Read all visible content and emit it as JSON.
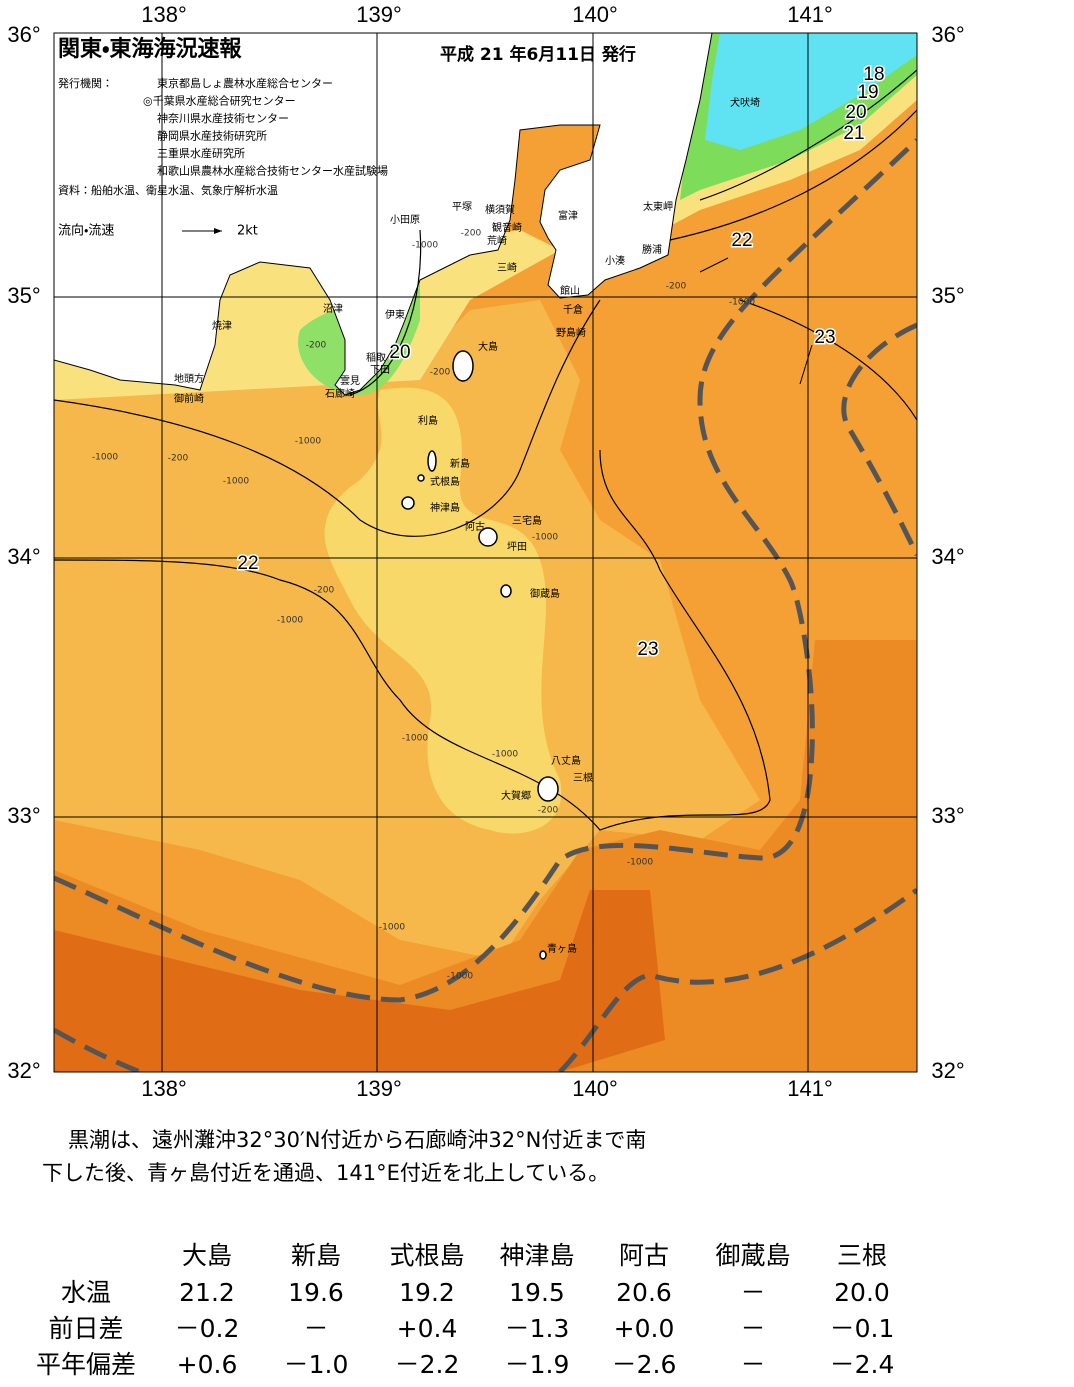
{
  "map": {
    "title": "関東・東海海況速報",
    "issue_date": "平成 21 年6月11日 発行",
    "publishers_label": "発行機関：",
    "publishers": [
      "東京都島しょ農林水産総合センター",
      "◎千葉県水産総合研究センター",
      "神奈川県水産技術センター",
      "静岡県水産技術研究所",
      "三重県水産研究所",
      "和歌山県農林水産総合技術センター水産試験場"
    ],
    "source": "資料：船舶水温、衛星水温、気象庁解析水温",
    "flow_label": "流向・流速",
    "flow_scale": "2kt",
    "lon_labels": [
      "138°",
      "139°",
      "140°",
      "141°"
    ],
    "lat_labels": [
      "36°",
      "35°",
      "34°",
      "33°",
      "32°"
    ],
    "place_names": [
      "犬吠埼",
      "太東岬",
      "勝浦",
      "小湊",
      "富津",
      "横須賀",
      "平塚",
      "小田原",
      "観音崎",
      "荒崎",
      "三崎",
      "館山",
      "千倉",
      "野島崎",
      "沼津",
      "伊東",
      "焼津",
      "稲取",
      "下田",
      "雲見",
      "石廊崎",
      "地頭方",
      "御前崎",
      "大島",
      "利島",
      "新島",
      "式根島",
      "神津島",
      "阿古",
      "三宅島",
      "坪田",
      "御蔵島",
      "八丈島",
      "三根",
      "大賀郷",
      "青ヶ島"
    ],
    "contour_labels": [
      "18",
      "19",
      "20",
      "21",
      "22",
      "20",
      "23",
      "22",
      "23"
    ],
    "depth_labels": [
      "-200",
      "-1000",
      "-200",
      "-200",
      "-1000",
      "-200",
      "-1000",
      "-200",
      "-1000",
      "-1000",
      "-200",
      "-1000",
      "-1000",
      "-1000",
      "-1000",
      "-200",
      "-1000",
      "-1000",
      "-1000"
    ]
  },
  "summary": [
    "黒潮は、遠州灘沖32°30′N付近から石廊崎沖32°N付近まで南",
    "下した後、青ヶ島付近を通過、141°E付近を北上している。"
  ],
  "table": {
    "columns": [
      "大島",
      "新島",
      "式根島",
      "神津島",
      "阿古",
      "御蔵島",
      "三根"
    ],
    "rows": [
      {
        "label": "水温",
        "cells": [
          "21.2",
          "19.6",
          "19.2",
          "19.5",
          "20.6",
          "－",
          "20.0"
        ]
      },
      {
        "label": "前日差",
        "cells": [
          "－0.2",
          "－",
          "+0.4",
          "－1.3",
          "+0.0",
          "－",
          "－0.1"
        ]
      },
      {
        "label": "平年偏差",
        "cells": [
          "+0.6",
          "－1.0",
          "－2.2",
          "－1.9",
          "－2.6",
          "－",
          "－2.4"
        ]
      }
    ]
  }
}
